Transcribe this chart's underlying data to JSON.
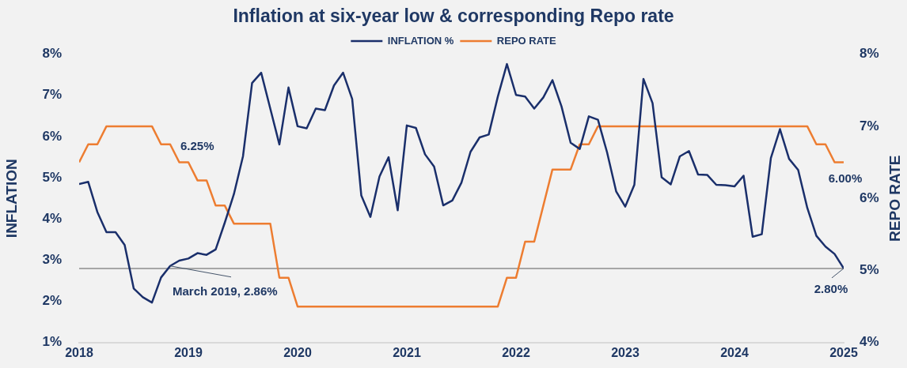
{
  "chart_data": {
    "type": "line",
    "title": "Inflation at six-year low & corresponding Repo rate",
    "ylabel": "INFLATION",
    "y2label": "REPO RATE",
    "x": [
      "2018-01",
      "2018-02",
      "2018-03",
      "2018-04",
      "2018-05",
      "2018-06",
      "2018-07",
      "2018-08",
      "2018-09",
      "2018-10",
      "2018-11",
      "2018-12",
      "2019-01",
      "2019-02",
      "2019-03",
      "2019-04",
      "2019-05",
      "2019-06",
      "2019-07",
      "2019-08",
      "2019-09",
      "2019-10",
      "2019-11",
      "2019-12",
      "2020-01",
      "2020-02",
      "2020-03",
      "2020-04",
      "2020-05",
      "2020-06",
      "2020-07",
      "2020-08",
      "2020-09",
      "2020-10",
      "2020-11",
      "2020-12",
      "2021-01",
      "2021-02",
      "2021-03",
      "2021-04",
      "2021-05",
      "2021-06",
      "2021-07",
      "2021-08",
      "2021-09",
      "2021-10",
      "2021-11",
      "2021-12",
      "2022-01",
      "2022-02",
      "2022-03",
      "2022-04",
      "2022-05",
      "2022-06",
      "2022-07",
      "2022-08",
      "2022-09",
      "2022-10",
      "2022-11",
      "2022-12",
      "2023-01",
      "2023-02",
      "2023-03",
      "2023-04",
      "2023-05",
      "2023-06",
      "2023-07",
      "2023-08",
      "2023-09",
      "2023-10",
      "2023-11",
      "2023-12",
      "2024-01",
      "2024-02",
      "2024-03",
      "2024-04",
      "2024-05",
      "2024-06",
      "2024-07",
      "2024-08",
      "2024-09",
      "2024-10",
      "2024-11",
      "2024-12",
      "2025-01"
    ],
    "series": [
      {
        "name": "INFLATION %",
        "color": "#1a2f6b",
        "values": [
          4.85,
          4.9,
          4.17,
          3.68,
          3.68,
          3.37,
          2.31,
          2.1,
          1.97,
          2.58,
          2.86,
          2.99,
          3.04,
          3.17,
          3.13,
          3.26,
          3.91,
          4.6,
          5.52,
          7.3,
          7.55,
          6.68,
          5.81,
          7.19,
          6.25,
          6.2,
          6.68,
          6.64,
          7.24,
          7.55,
          6.91,
          4.57,
          4.05,
          5.03,
          5.5,
          4.21,
          6.27,
          6.21,
          5.57,
          5.27,
          4.33,
          4.45,
          4.88,
          5.63,
          5.98,
          6.05,
          6.97,
          7.76,
          7.01,
          6.97,
          6.68,
          6.95,
          7.37,
          6.73,
          5.85,
          5.7,
          6.49,
          6.41,
          5.62,
          4.67,
          4.3,
          4.83,
          7.4,
          6.81,
          5.01,
          4.84,
          5.52,
          5.65,
          5.08,
          5.07,
          4.83,
          4.82,
          4.79,
          5.05,
          3.57,
          3.63,
          5.48,
          6.18,
          5.46,
          5.19,
          4.27,
          3.59,
          3.33,
          3.15,
          2.8
        ]
      },
      {
        "name": "REPO RATE",
        "color": "#ed7d31",
        "axis": "y2",
        "values": [
          6.5,
          6.75,
          6.75,
          7,
          7,
          7,
          7,
          7,
          7,
          6.75,
          6.75,
          6.5,
          6.5,
          6.25,
          6.25,
          5.9,
          5.9,
          5.65,
          5.65,
          5.65,
          5.65,
          5.65,
          4.9,
          4.9,
          4.5,
          4.5,
          4.5,
          4.5,
          4.5,
          4.5,
          4.5,
          4.5,
          4.5,
          4.5,
          4.5,
          4.5,
          4.5,
          4.5,
          4.5,
          4.5,
          4.5,
          4.5,
          4.5,
          4.5,
          4.5,
          4.5,
          4.5,
          4.9,
          4.9,
          5.4,
          5.4,
          5.9,
          6.4,
          6.4,
          6.4,
          6.75,
          6.75,
          7,
          7,
          7,
          7,
          7,
          7,
          7,
          7,
          7,
          7,
          7,
          7,
          7,
          7,
          7,
          7,
          7,
          7,
          7,
          7,
          7,
          7,
          7,
          7,
          6.75,
          6.75,
          6.5,
          6.5
        ]
      }
    ],
    "xlim": [
      "2018-01",
      "2025-01"
    ],
    "xticks": [
      "2018",
      "2019",
      "2020",
      "2021",
      "2022",
      "2023",
      "2024",
      "2025"
    ],
    "ylim": [
      1,
      8
    ],
    "yticks": [
      {
        "value": 1,
        "label": "1%"
      },
      {
        "value": 2,
        "label": "2%"
      },
      {
        "value": 3,
        "label": "3%"
      },
      {
        "value": 4,
        "label": "4%"
      },
      {
        "value": 5,
        "label": "5%"
      },
      {
        "value": 6,
        "label": "6%"
      },
      {
        "value": 7,
        "label": "7%"
      },
      {
        "value": 8,
        "label": "8%"
      }
    ],
    "y2lim": [
      4,
      8
    ],
    "y2ticks": [
      {
        "value": 4,
        "label": "4%"
      },
      {
        "value": 5,
        "label": "5%"
      },
      {
        "value": 6,
        "label": "6%"
      },
      {
        "value": 7,
        "label": "7%"
      },
      {
        "value": 8,
        "label": "8%"
      }
    ],
    "ref_lines": [
      {
        "axis": "y",
        "value": 2.8,
        "color": "#a6a6a6"
      }
    ],
    "annotations": [
      {
        "text": "March 2019, 2.86%",
        "x": "2018-11",
        "y": 2.86
      },
      {
        "text": "2.80%",
        "x": "2025-01",
        "y": 2.8
      },
      "6.25%",
      "6.00%"
    ],
    "grid": false,
    "legend": "top",
    "marker": "none"
  }
}
